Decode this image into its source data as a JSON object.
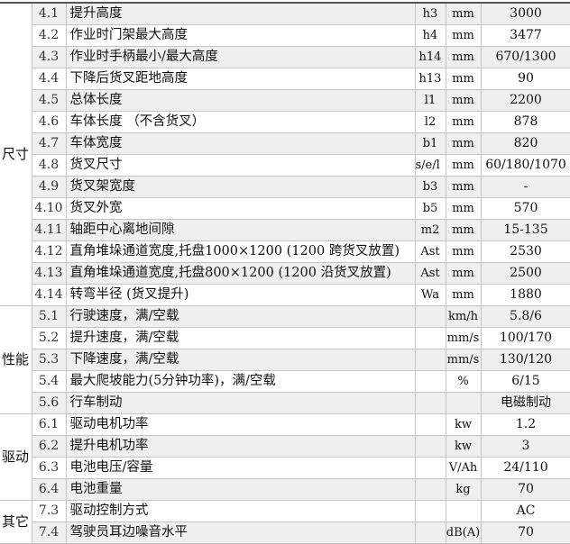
{
  "sections": [
    {
      "category": "尺寸",
      "rows": [
        {
          "no": "4.1",
          "desc": "提升高度",
          "sym": "h3",
          "unit": "mm",
          "val": "3000"
        },
        {
          "no": "4.2",
          "desc": "作业时门架最大高度",
          "sym": "h4",
          "unit": "mm",
          "val": "3477"
        },
        {
          "no": "4.3",
          "desc": "作业时手柄最小/最大高度",
          "sym": "h14",
          "unit": "mm",
          "val": "670/1300"
        },
        {
          "no": "4.4",
          "desc": "下降后货叉距地高度",
          "sym": "h13",
          "unit": "mm",
          "val": "90"
        },
        {
          "no": "4.5",
          "desc": "总体长度",
          "sym": "l1",
          "unit": "mm",
          "val": "2200"
        },
        {
          "no": "4.6",
          "desc": "车体长度 （不含货叉）",
          "sym": "l2",
          "unit": "mm",
          "val": "878"
        },
        {
          "no": "4.7",
          "desc": "车体宽度",
          "sym": "b1",
          "unit": "mm",
          "val": "820"
        },
        {
          "no": "4.8",
          "desc": "货叉尺寸",
          "sym": "s/e/l",
          "unit": "mm",
          "val": "60/180/1070"
        },
        {
          "no": "4.9",
          "desc": "货叉架宽度",
          "sym": "b3",
          "unit": "mm",
          "val": "-"
        },
        {
          "no": "4.10",
          "desc": "货叉外宽",
          "sym": "b5",
          "unit": "mm",
          "val": "570"
        },
        {
          "no": "4.11",
          "desc": "轴距中心离地间隙",
          "sym": "m2",
          "unit": "mm",
          "val": "15-135"
        },
        {
          "no": "4.12",
          "desc": "直角堆垛通道宽度,托盘1000×1200 (1200 跨货叉放置)",
          "sym": "Ast",
          "unit": "mm",
          "val": "2530"
        },
        {
          "no": "4.13",
          "desc": "直角堆垛通道宽度,托盘800×1200 (1200 沿货叉放置)",
          "sym": "Ast",
          "unit": "mm",
          "val": "2500"
        },
        {
          "no": "4.14",
          "desc": "转弯半径 (货叉提升)",
          "sym": "Wa",
          "unit": "mm",
          "val": "1880"
        }
      ]
    },
    {
      "category": "性能",
      "rows": [
        {
          "no": "5.1",
          "desc": "行驶速度，满/空载",
          "sym": "",
          "unit": "km/h",
          "val": "5.8/6"
        },
        {
          "no": "5.2",
          "desc": "提升速度，满/空载",
          "sym": "",
          "unit": "mm/s",
          "val": "100/170"
        },
        {
          "no": "5.3",
          "desc": "下降速度，满/空载",
          "sym": "",
          "unit": "mm/s",
          "val": "130/120"
        },
        {
          "no": "5.4",
          "desc": "最大爬坡能力(5分钟功率)，满/空载",
          "sym": "",
          "unit": "%",
          "val": "6/15"
        },
        {
          "no": "5.6",
          "desc": "行车制动",
          "sym": "",
          "unit": "",
          "val": "电磁制动"
        }
      ]
    },
    {
      "category": "驱动",
      "rows": [
        {
          "no": "6.1",
          "desc": "驱动电机功率",
          "sym": "",
          "unit": "kw",
          "val": "1.2"
        },
        {
          "no": "6.2",
          "desc": "提升电机功率",
          "sym": "",
          "unit": "kw",
          "val": "3"
        },
        {
          "no": "6.3",
          "desc": "电池电压/容量",
          "sym": "",
          "unit": "V/Ah",
          "val": "24/110"
        },
        {
          "no": "6.4",
          "desc": "电池重量",
          "sym": "",
          "unit": "kg",
          "val": "70"
        }
      ]
    },
    {
      "category": "其它",
      "rows": [
        {
          "no": "7.3",
          "desc": "驱动控制方式",
          "sym": "",
          "unit": "",
          "val": "AC"
        },
        {
          "no": "7.4",
          "desc": "驾驶员耳边噪音水平",
          "sym": "",
          "unit": "dB(A)",
          "val": "70"
        }
      ]
    }
  ]
}
